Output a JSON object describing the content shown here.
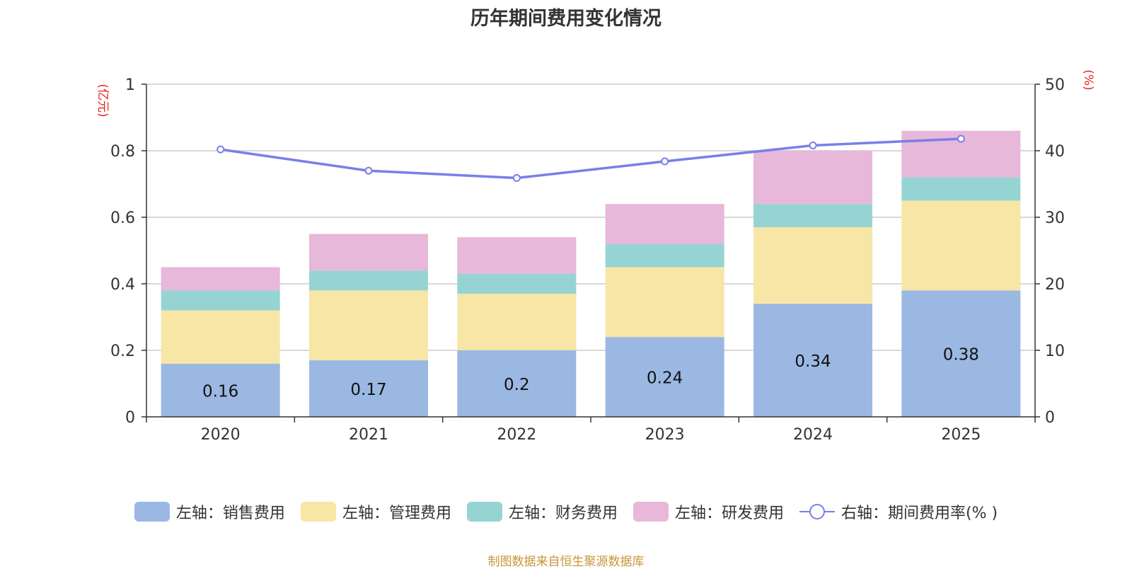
{
  "chart_data": {
    "type": "bar",
    "stacked": true,
    "title": "历年期间费用变化情况",
    "categories": [
      "2020",
      "2021",
      "2022",
      "2023",
      "2024",
      "2025"
    ],
    "left_axis": {
      "unit": "(亿元)",
      "ylim": [
        0,
        1
      ],
      "ticks": [
        "0",
        "0.2",
        "0.4",
        "0.6",
        "0.8",
        "1"
      ]
    },
    "right_axis": {
      "unit": "(%)",
      "ylim": [
        0,
        50
      ],
      "ticks": [
        "0",
        "10",
        "20",
        "30",
        "40",
        "50"
      ]
    },
    "grid": true,
    "series": [
      {
        "name": "左轴：销售费用",
        "color": "#9bb8e2",
        "values": [
          0.16,
          0.17,
          0.2,
          0.24,
          0.34,
          0.38
        ],
        "labels": [
          "0.16",
          "0.17",
          "0.2",
          "0.24",
          "0.34",
          "0.38"
        ]
      },
      {
        "name": "左轴：管理费用",
        "color": "#f7e6a6",
        "values": [
          0.16,
          0.21,
          0.17,
          0.21,
          0.23,
          0.27
        ]
      },
      {
        "name": "左轴：财务费用",
        "color": "#96d4d4",
        "values": [
          0.06,
          0.06,
          0.06,
          0.07,
          0.07,
          0.07
        ]
      },
      {
        "name": "左轴：研发费用",
        "color": "#e7b8d9",
        "values": [
          0.07,
          0.11,
          0.11,
          0.12,
          0.16,
          0.14
        ]
      }
    ],
    "line_series": {
      "name": "右轴：期间费用率(% )",
      "color": "#7a7fe8",
      "values": [
        40.2,
        37.0,
        35.9,
        38.4,
        40.8,
        41.8
      ]
    },
    "legend_position": "bottom"
  },
  "source": "制图数据来自恒生聚源数据库"
}
